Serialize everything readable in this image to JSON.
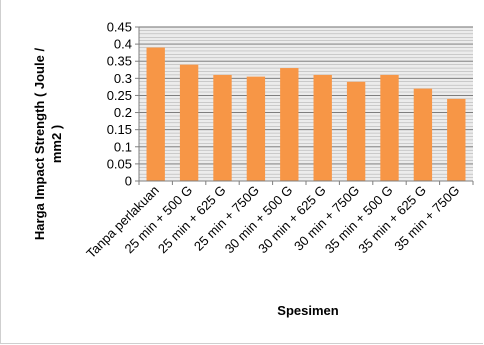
{
  "chart_data": {
    "type": "bar",
    "title": "",
    "xlabel": "Spesimen",
    "ylabel_lines": [
      "Harga Impact Strength ( Joule /",
      "mm2 )"
    ],
    "categories": [
      "Tanpa perlakuan",
      "25 min + 500 G",
      "25 min + 625 G",
      "25 min + 750G",
      "30 min + 500 G",
      "30 min + 625 G",
      "30 min + 750G",
      "35 min + 500 G",
      "35 min + 625 G",
      "35 min + 750G"
    ],
    "values": [
      0.39,
      0.34,
      0.31,
      0.305,
      0.33,
      0.31,
      0.29,
      0.31,
      0.27,
      0.24
    ],
    "ylim": [
      0,
      0.45
    ],
    "yticks": [
      "0",
      "0.05",
      "0.1",
      "0.15",
      "0.2",
      "0.25",
      "0.3",
      "0.35",
      "0.4",
      "0.45"
    ],
    "grid": true,
    "legend": "none",
    "bar_color": "#f79646",
    "grid_color": "#7f7f7f",
    "plot_background": "#ececec"
  }
}
